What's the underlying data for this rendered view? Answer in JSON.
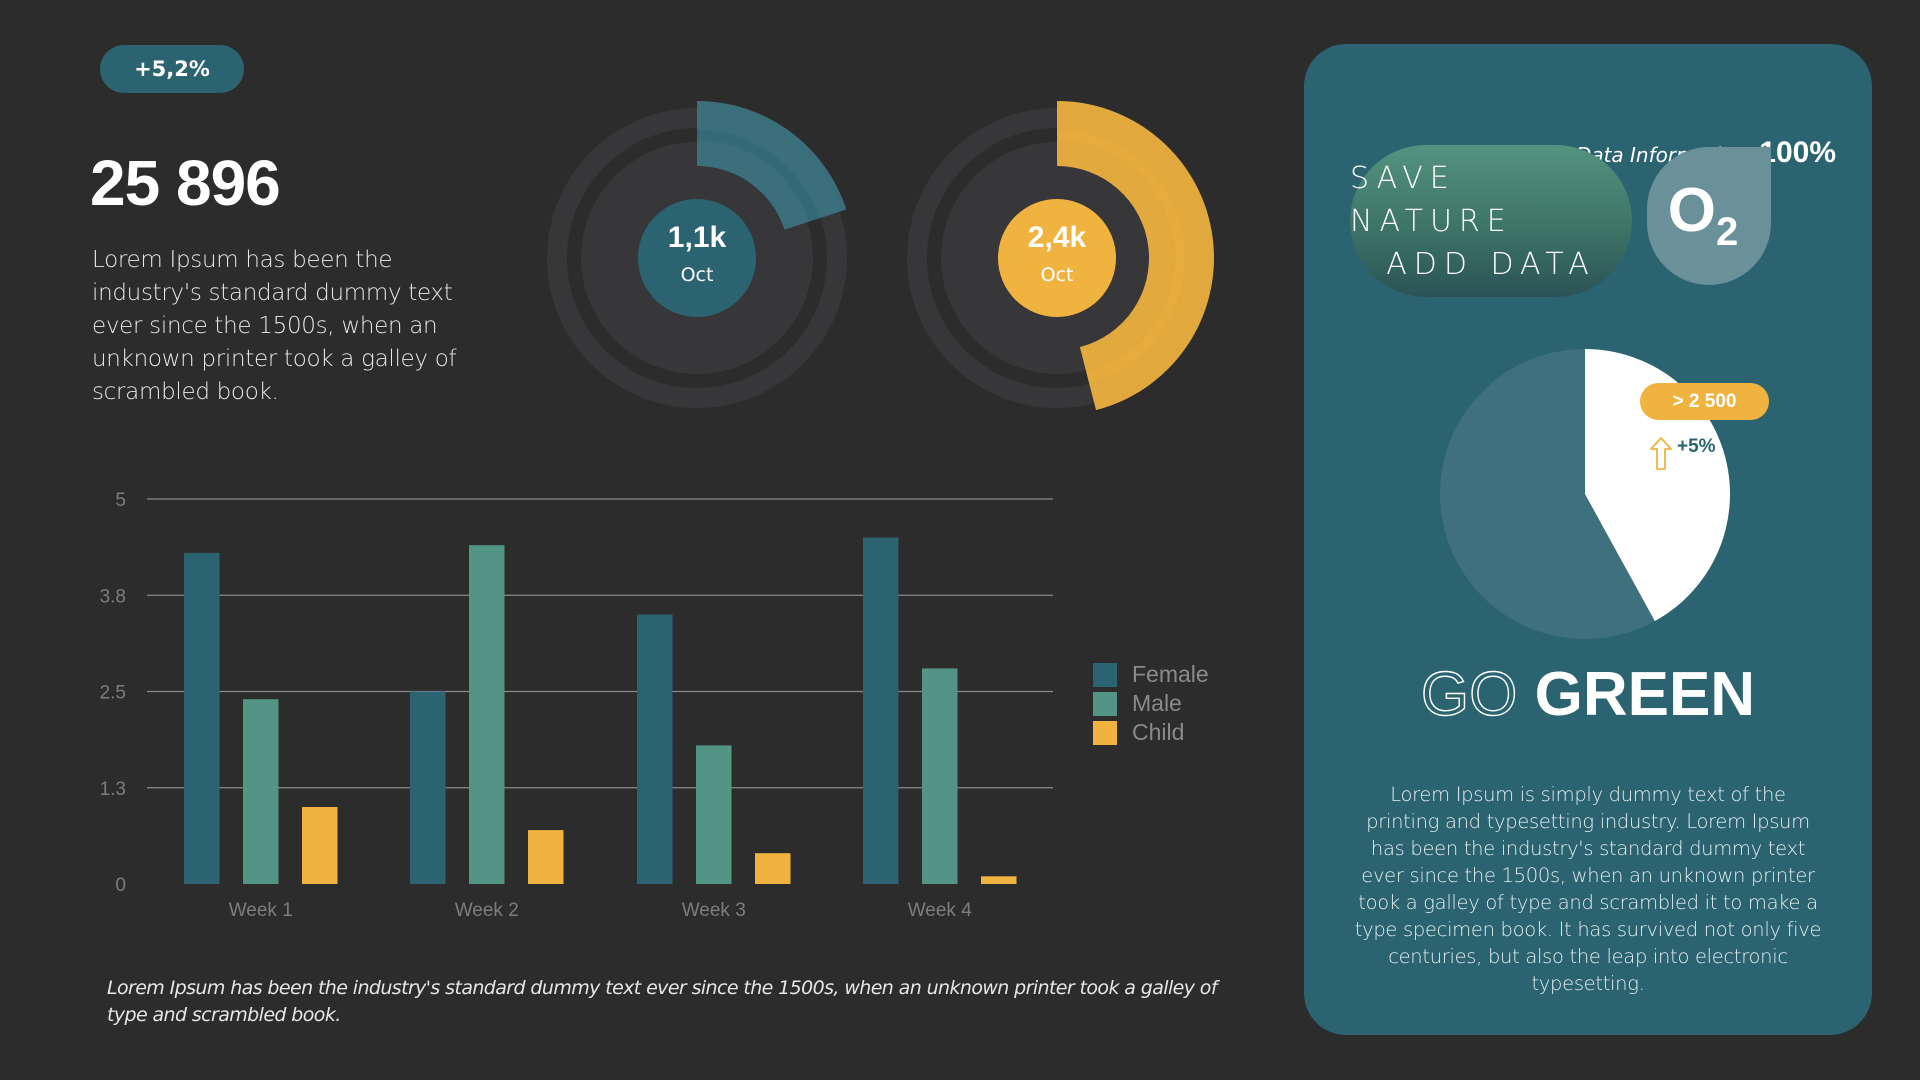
{
  "header": {
    "change_badge": "+5,2%",
    "total_value": "25 896",
    "description": "Lorem Ipsum has been the industry's standard dummy text ever since the 1500s, when an unknown printer took a galley of scrambled book."
  },
  "rings": [
    {
      "value": "1,1k",
      "label": "Oct",
      "percent": 20,
      "color": "#2b6371",
      "arc_color": "#3c7584"
    },
    {
      "value": "2,4k",
      "label": "Oct",
      "percent": 46,
      "color": "#f1b33f",
      "arc_color": "#f1b33f"
    }
  ],
  "colors": {
    "background": "#2c2c2c",
    "panel": "#2b6371",
    "female": "#2b6371",
    "male": "#539584",
    "child": "#f1b33f",
    "track": "#37373a",
    "grid": "#8a8a8a",
    "axis_text": "#7d7d7d"
  },
  "chart_data": {
    "type": "bar",
    "title": "",
    "xlabel": "",
    "ylabel": "",
    "categories": [
      "Week 1",
      "Week 2",
      "Week 3",
      "Week 4"
    ],
    "series": [
      {
        "name": "Female",
        "values": [
          4.3,
          2.5,
          3.5,
          4.5
        ]
      },
      {
        "name": "Male",
        "values": [
          2.4,
          4.4,
          1.8,
          2.8
        ]
      },
      {
        "name": "Child",
        "values": [
          1.0,
          0.7,
          0.4,
          0.1
        ]
      }
    ],
    "yticks": [
      "0",
      "1.3",
      "2.5",
      "3.8",
      "5"
    ],
    "ylim": [
      0,
      5
    ],
    "grid": true,
    "legend_position": "right"
  },
  "legend": {
    "items": [
      {
        "label": "Female"
      },
      {
        "label": "Male"
      },
      {
        "label": "Child"
      }
    ]
  },
  "footnote": "Lorem Ipsum has been the industry's standard dummy text ever since the 1500s, when an unknown printer took a galley of type and scrambled book.",
  "panel": {
    "data_info_label": "Data Information:",
    "data_info_value": "100%",
    "pill_line1": "SAVE NATURE",
    "pill_line2": "ADD DATA",
    "o2_main": "O",
    "o2_sub": "2",
    "pie": {
      "highlight_percent": 42,
      "badge": "> 2 500",
      "change": "+5%"
    },
    "heading_light": "GO",
    "heading_bold": "GREEN",
    "body": "Lorem Ipsum is simply dummy text of the printing and typesetting industry. Lorem Ipsum has been the industry's standard dummy text ever since the 1500s, when an unknown printer took a galley of type and scrambled it to make a type specimen book. It has survived not only five centuries, but also the leap into electronic typesetting."
  }
}
